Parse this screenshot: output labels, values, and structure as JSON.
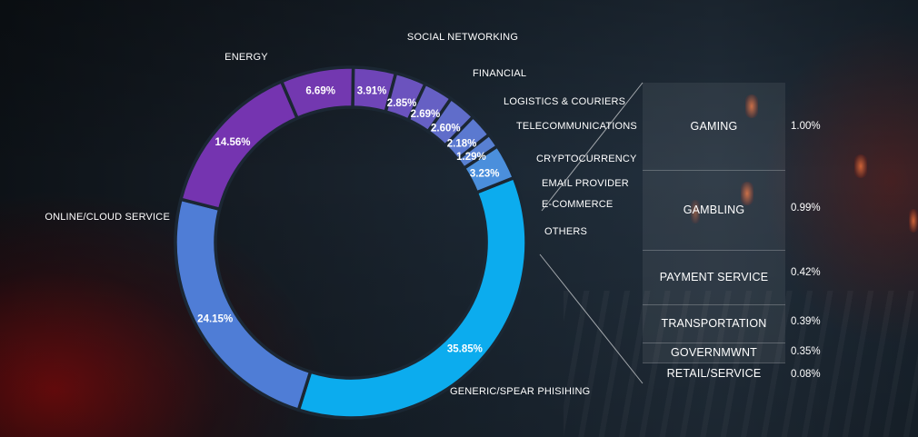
{
  "chart_data": {
    "type": "pie",
    "categories": [
      "GENERIC/SPEAR PHISIHING",
      "ONLINE/CLOUD SERVICE",
      "ENERGY",
      "SOCIAL NETWORKING",
      "FINANCIAL",
      "LOGISTICS & COURIERS",
      "TELECOMMUNICATIONS",
      "CRYPTOCURRENCY",
      "EMAIL PROVIDER",
      "E-COMMERCE",
      "OTHERS"
    ],
    "values": [
      35.85,
      24.15,
      14.56,
      6.69,
      3.91,
      2.85,
      2.69,
      2.6,
      2.18,
      1.29,
      3.23
    ],
    "value_labels": [
      "35.85%",
      "24.15%",
      "14.56%",
      "6.69%",
      "3.91%",
      "2.85%",
      "2.69%",
      "2.60%",
      "2.18%",
      "1.29%",
      "3.23%"
    ],
    "colors": [
      "#0cacee",
      "#4f7dd6",
      "#7534b0",
      "#7338b0",
      "#6f45b8",
      "#6b53be",
      "#6660c4",
      "#606dca",
      "#5b79d0",
      "#5880d2",
      "#4b8fdc"
    ],
    "others_breakdown": {
      "categories": [
        "GAMING",
        "GAMBLING",
        "PAYMENT SERVICE",
        "TRANSPORTATION",
        "GOVERNMWNT",
        "RETAIL/SERVICE"
      ],
      "values": [
        1.0,
        0.99,
        0.42,
        0.39,
        0.35,
        0.08
      ],
      "value_labels": [
        "1.00%",
        "0.99%",
        "0.42%",
        "0.39%",
        "0.35%",
        "0.08%"
      ]
    }
  }
}
